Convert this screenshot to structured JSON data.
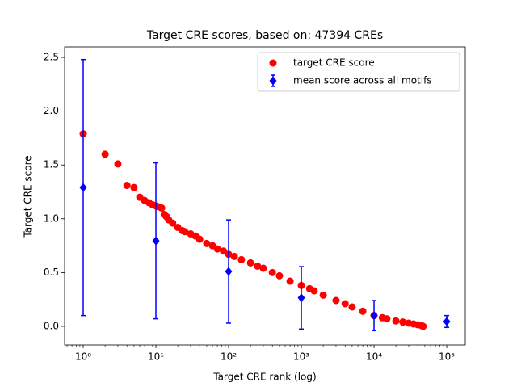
{
  "chart_data": {
    "type": "scatter",
    "title": "Target CRE scores, based on: 47394 CREs",
    "xlabel": "Target CRE rank (log)",
    "ylabel": "Target CRE score",
    "xscale": "log",
    "xlim": [
      0.555,
      180000
    ],
    "ylim": [
      -0.173,
      2.598
    ],
    "xticks": [
      {
        "value": 1,
        "label": "10⁰"
      },
      {
        "value": 10,
        "label": "10¹"
      },
      {
        "value": 100,
        "label": "10²"
      },
      {
        "value": 1000,
        "label": "10³"
      },
      {
        "value": 10000,
        "label": "10⁴"
      },
      {
        "value": 100000,
        "label": "10⁵"
      }
    ],
    "yticks": [
      {
        "value": 0,
        "label": "0.0"
      },
      0.5,
      {
        "value": 1,
        "label": "1.0"
      },
      1.5,
      {
        "value": 2,
        "label": "2.0"
      },
      2.5
    ],
    "legend": "upper right",
    "series": [
      {
        "name": "target CRE score",
        "color": "#ff0000",
        "marker": "circle",
        "x": [
          1,
          2,
          3,
          4,
          5,
          6,
          7,
          8,
          9,
          10,
          11,
          12,
          13,
          14,
          15,
          17,
          20,
          23,
          25,
          30,
          35,
          40,
          50,
          60,
          70,
          85,
          100,
          120,
          150,
          200,
          250,
          300,
          400,
          500,
          700,
          1000,
          1300,
          1500,
          2000,
          3000,
          4000,
          5000,
          7000,
          10000,
          13000,
          15000,
          20000,
          25000,
          30000,
          35000,
          40000,
          45000,
          47394
        ],
        "values": [
          1.79,
          1.6,
          1.51,
          1.31,
          1.29,
          1.2,
          1.17,
          1.15,
          1.13,
          1.12,
          1.11,
          1.1,
          1.04,
          1.02,
          0.99,
          0.96,
          0.92,
          0.89,
          0.88,
          0.86,
          0.84,
          0.81,
          0.77,
          0.75,
          0.72,
          0.7,
          0.67,
          0.65,
          0.62,
          0.59,
          0.56,
          0.54,
          0.5,
          0.47,
          0.42,
          0.38,
          0.35,
          0.33,
          0.29,
          0.24,
          0.21,
          0.18,
          0.14,
          0.1,
          0.08,
          0.07,
          0.05,
          0.04,
          0.03,
          0.022,
          0.015,
          0.007,
          0.0
        ]
      },
      {
        "name": "mean score across all motifs",
        "color": "#0000ff",
        "marker": "diamond",
        "x": [
          1,
          10,
          100,
          1000,
          10000,
          100000
        ],
        "values": [
          1.29,
          0.795,
          0.51,
          0.265,
          0.1,
          0.045
        ],
        "errors": [
          1.19,
          0.725,
          0.48,
          0.29,
          0.14,
          0.055
        ]
      }
    ]
  }
}
